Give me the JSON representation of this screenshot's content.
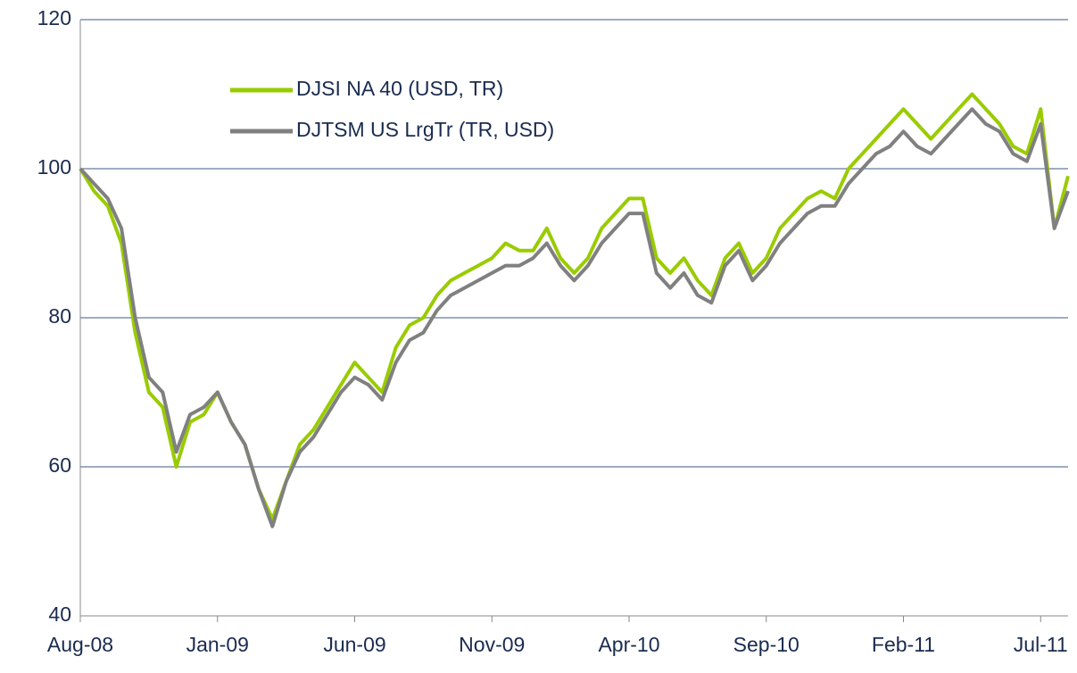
{
  "chart_data": {
    "type": "line",
    "categories": [
      "Aug-08",
      null,
      null,
      null,
      null,
      null,
      null,
      null,
      null,
      null,
      "Jan-09",
      null,
      null,
      null,
      null,
      null,
      null,
      null,
      null,
      null,
      "Jun-09",
      null,
      null,
      null,
      null,
      null,
      null,
      null,
      null,
      null,
      "Nov-09",
      null,
      null,
      null,
      null,
      null,
      null,
      null,
      null,
      null,
      "Apr-10",
      null,
      null,
      null,
      null,
      null,
      null,
      null,
      null,
      null,
      "Sep-10",
      null,
      null,
      null,
      null,
      null,
      null,
      null,
      null,
      null,
      "Feb-11",
      null,
      null,
      null,
      null,
      null,
      null,
      null,
      null,
      null,
      "Jul-11",
      null,
      null
    ],
    "series": [
      {
        "name": "DJSI NA 40 (USD, TR)",
        "color": "#99cc00",
        "values": [
          100,
          97,
          95,
          90,
          78,
          70,
          68,
          60,
          66,
          67,
          70,
          66,
          63,
          57,
          53,
          58,
          63,
          65,
          68,
          71,
          74,
          72,
          70,
          76,
          79,
          80,
          83,
          85,
          86,
          87,
          88,
          90,
          89,
          89,
          92,
          88,
          86,
          88,
          92,
          94,
          96,
          96,
          88,
          86,
          88,
          85,
          83,
          88,
          90,
          86,
          88,
          92,
          94,
          96,
          97,
          96,
          100,
          102,
          104,
          106,
          108,
          106,
          104,
          106,
          108,
          110,
          108,
          106,
          103,
          102,
          108,
          92,
          99
        ]
      },
      {
        "name": "DJTSM US LrgTr (TR, USD)",
        "color": "#808080",
        "values": [
          100,
          98,
          96,
          92,
          80,
          72,
          70,
          62,
          67,
          68,
          70,
          66,
          63,
          57,
          52,
          58,
          62,
          64,
          67,
          70,
          72,
          71,
          69,
          74,
          77,
          78,
          81,
          83,
          84,
          85,
          86,
          87,
          87,
          88,
          90,
          87,
          85,
          87,
          90,
          92,
          94,
          94,
          86,
          84,
          86,
          83,
          82,
          87,
          89,
          85,
          87,
          90,
          92,
          94,
          95,
          95,
          98,
          100,
          102,
          103,
          105,
          103,
          102,
          104,
          106,
          108,
          106,
          105,
          102,
          101,
          106,
          92,
          97
        ]
      }
    ],
    "ylim": [
      40,
      120
    ],
    "yticks": [
      40,
      60,
      80,
      100,
      120
    ],
    "grid": true,
    "legend": "upper left"
  }
}
